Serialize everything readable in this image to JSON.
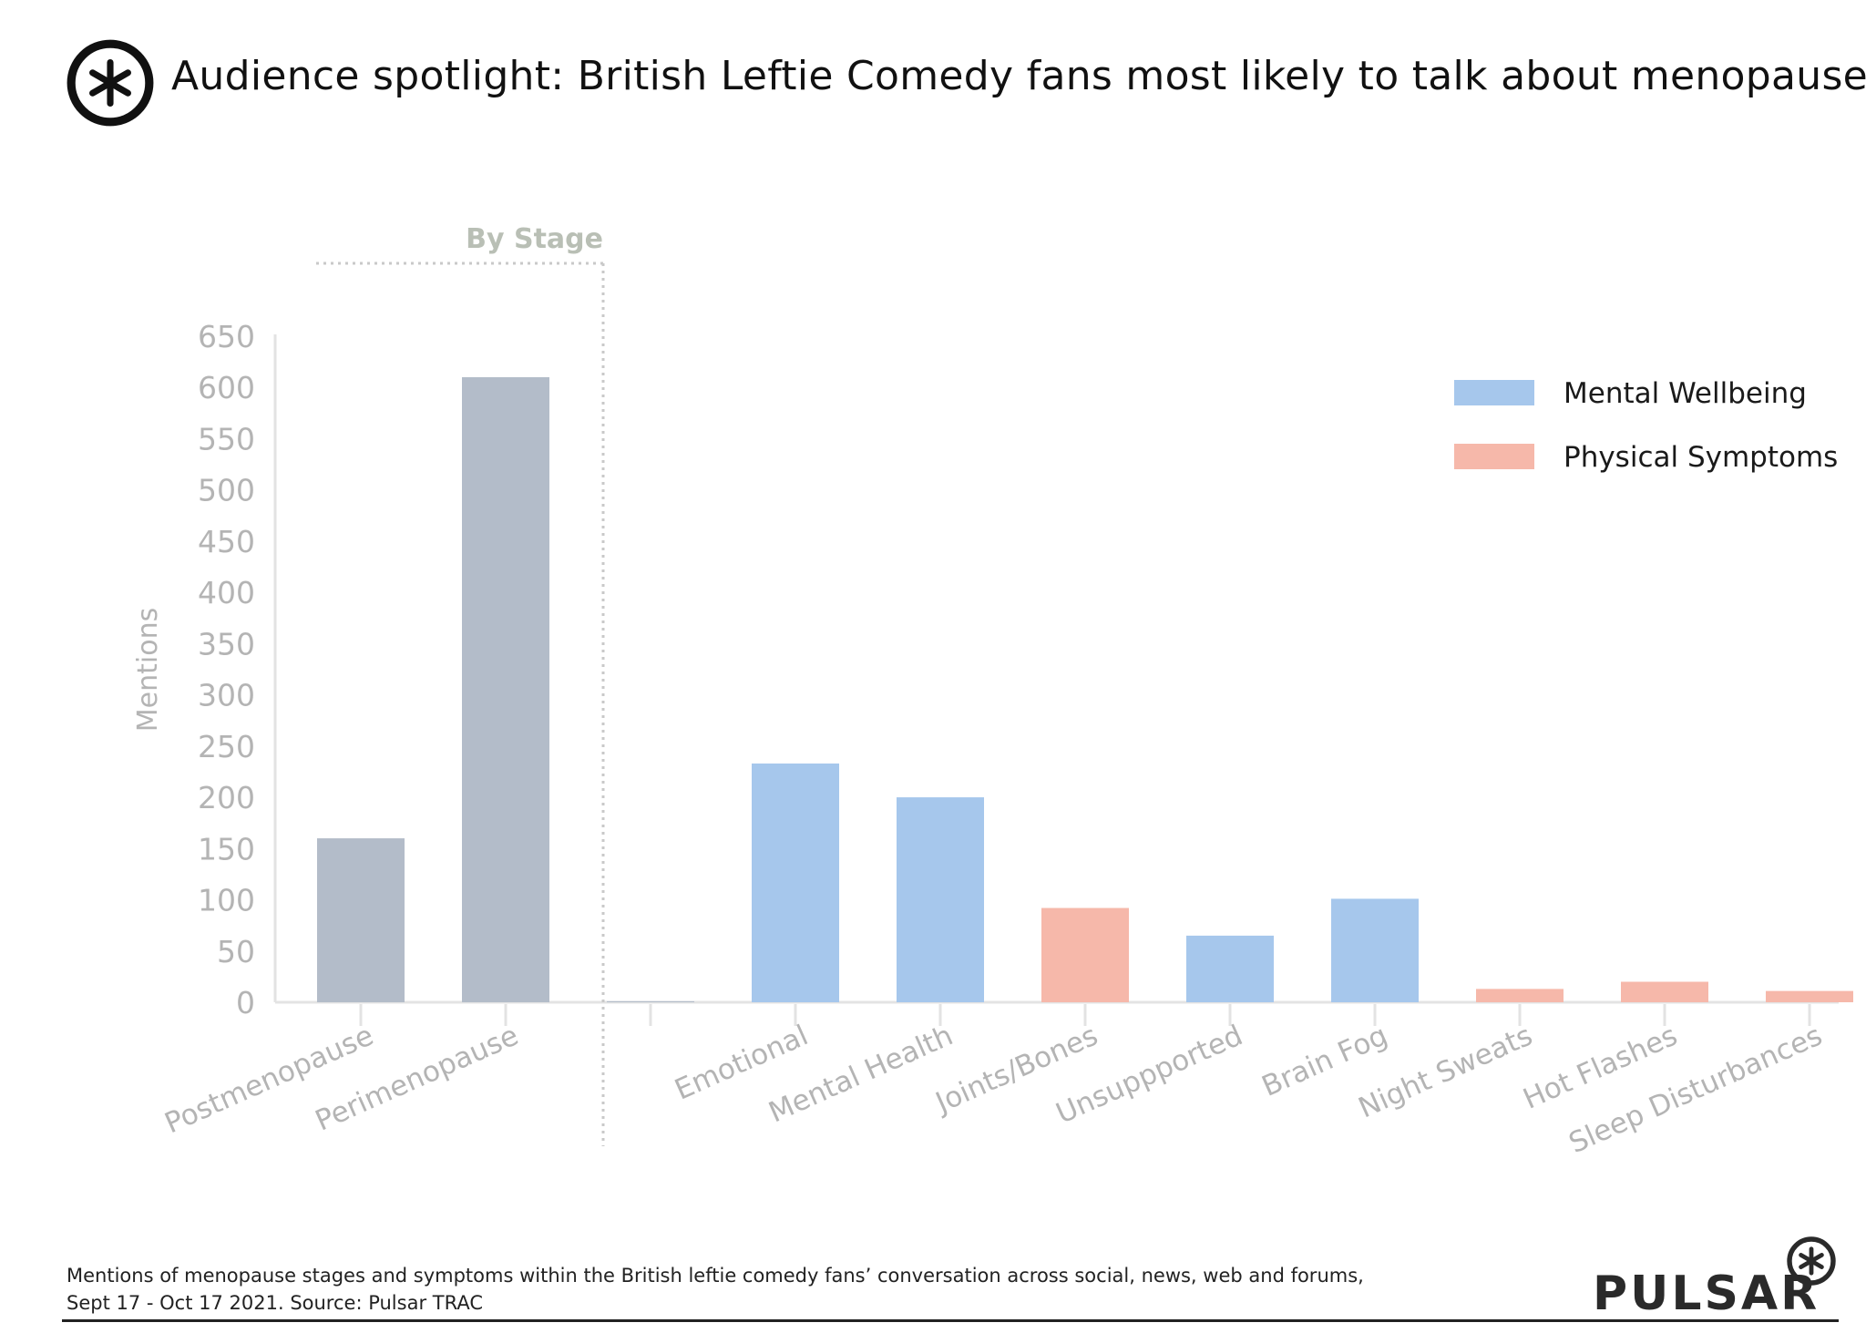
{
  "title": "Audience spotlight: British Leftie Comedy fans most likely to talk about menopause",
  "brand": "PULSAR",
  "footnote": [
    "Mentions of menopause stages and symptoms within the British leftie comedy fans’ conversation across social, news, web and forums,",
    "Sept 17 - Oct 17 2021. Source: Pulsar TRAC"
  ],
  "colors": {
    "stage": "#b3bcc9",
    "mental": "#a6c7ec",
    "physical": "#f6b8aa",
    "axis_text": "#b4b4b4",
    "axis_line": "#e3e3e3",
    "divider": "#c9c9c9",
    "stage_label": "#b9bfb5"
  },
  "chart_data": {
    "type": "bar",
    "ylabel": "Mentions",
    "ylim": [
      0,
      650
    ],
    "yticks": [
      0,
      50,
      100,
      150,
      200,
      250,
      300,
      350,
      400,
      450,
      500,
      550,
      600,
      650
    ],
    "group_label": "By Stage",
    "categories": [
      "Postmenopause",
      "Perimenopause",
      "",
      "Emotional",
      "Mental Health",
      "Joints/Bones",
      "Unsuppported",
      "Brain Fog",
      "Night Sweats",
      "Hot Flashes",
      "Sleep Disturbances"
    ],
    "values": [
      160,
      610,
      1,
      233,
      200,
      92,
      65,
      101,
      13,
      20,
      11
    ],
    "groups": [
      "stage",
      "stage",
      "stage",
      "mental",
      "mental",
      "physical",
      "mental",
      "mental",
      "physical",
      "physical",
      "physical"
    ],
    "legend": [
      {
        "name": "Mental Wellbeing",
        "group": "mental"
      },
      {
        "name": "Physical Symptoms",
        "group": "physical"
      }
    ],
    "legend_position": "top-right",
    "grid": false
  }
}
